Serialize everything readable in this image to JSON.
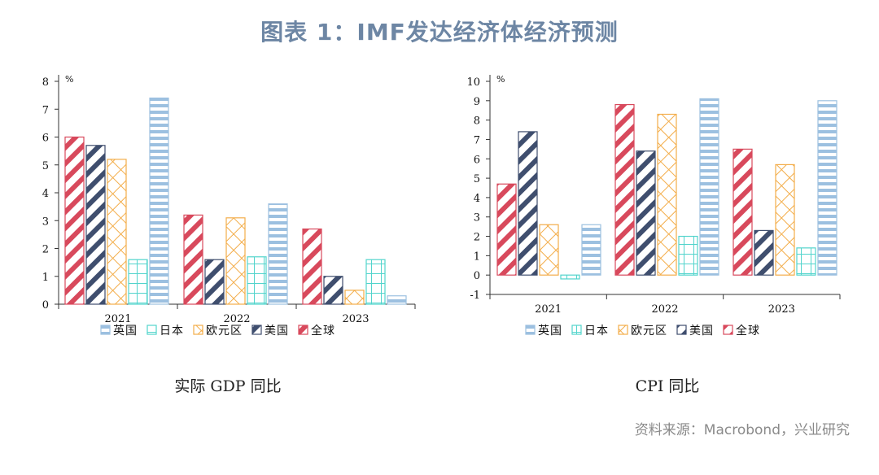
{
  "page": {
    "title": "图表 1：IMF发达经济体经济预测",
    "source": "资料来源：Macrobond，兴业研究"
  },
  "colors": {
    "全球": "#d8495c",
    "美国": "#3f4e6e",
    "欧元区": "#f3ad4a",
    "日本": "#52d4cc",
    "英国": "#9cc0e0"
  },
  "legend": [
    "英国",
    "日本",
    "欧元区",
    "美国",
    "全球"
  ],
  "chart_data": [
    {
      "type": "bar",
      "caption": "实际 GDP 同比",
      "unit": "%",
      "categories": [
        "2021",
        "2022",
        "2023"
      ],
      "ylim": [
        0,
        8
      ],
      "yticks": [
        0,
        1,
        2,
        3,
        4,
        5,
        6,
        7,
        8
      ],
      "series": [
        {
          "name": "全球",
          "values": [
            6.0,
            3.2,
            2.7
          ]
        },
        {
          "name": "美国",
          "values": [
            5.7,
            1.6,
            1.0
          ]
        },
        {
          "name": "欧元区",
          "values": [
            5.2,
            3.1,
            0.5
          ]
        },
        {
          "name": "日本",
          "values": [
            1.6,
            1.7,
            1.6
          ]
        },
        {
          "name": "英国",
          "values": [
            7.4,
            3.6,
            0.3
          ]
        }
      ]
    },
    {
      "type": "bar",
      "caption": "CPI 同比",
      "unit": "%",
      "categories": [
        "2021",
        "2022",
        "2023"
      ],
      "ylim": [
        -1,
        10
      ],
      "yticks": [
        -1,
        0,
        1,
        2,
        3,
        4,
        5,
        6,
        7,
        8,
        9,
        10
      ],
      "series": [
        {
          "name": "全球",
          "values": [
            4.7,
            8.8,
            6.5
          ]
        },
        {
          "name": "美国",
          "values": [
            7.4,
            6.4,
            2.3
          ]
        },
        {
          "name": "欧元区",
          "values": [
            2.6,
            8.3,
            5.7
          ]
        },
        {
          "name": "日本",
          "values": [
            -0.2,
            2.0,
            1.4
          ]
        },
        {
          "name": "英国",
          "values": [
            2.6,
            9.1,
            9.0
          ]
        }
      ]
    }
  ]
}
